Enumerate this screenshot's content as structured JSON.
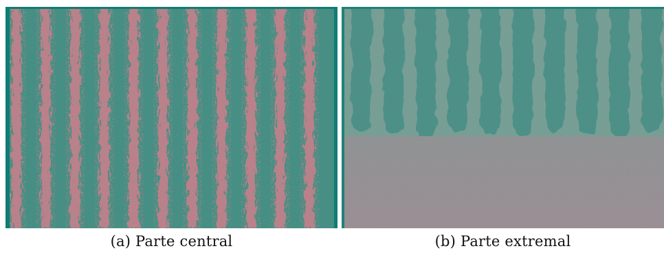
{
  "figure": {
    "panels": [
      {
        "id": "a",
        "caption": "(a) Parte central",
        "colors": {
          "background": "#3b8a7e",
          "stripe": "#cc7a86",
          "frame": "#0f7d74"
        },
        "stripe_count": 11
      },
      {
        "id": "b",
        "caption": "(b) Parte extremal",
        "colors": {
          "upper_background": "#6f9b8f",
          "teeth": "#3f8b80",
          "lower_region": "#8e8c8f",
          "frame": "#1f8177"
        },
        "tooth_count": 10
      }
    ]
  }
}
